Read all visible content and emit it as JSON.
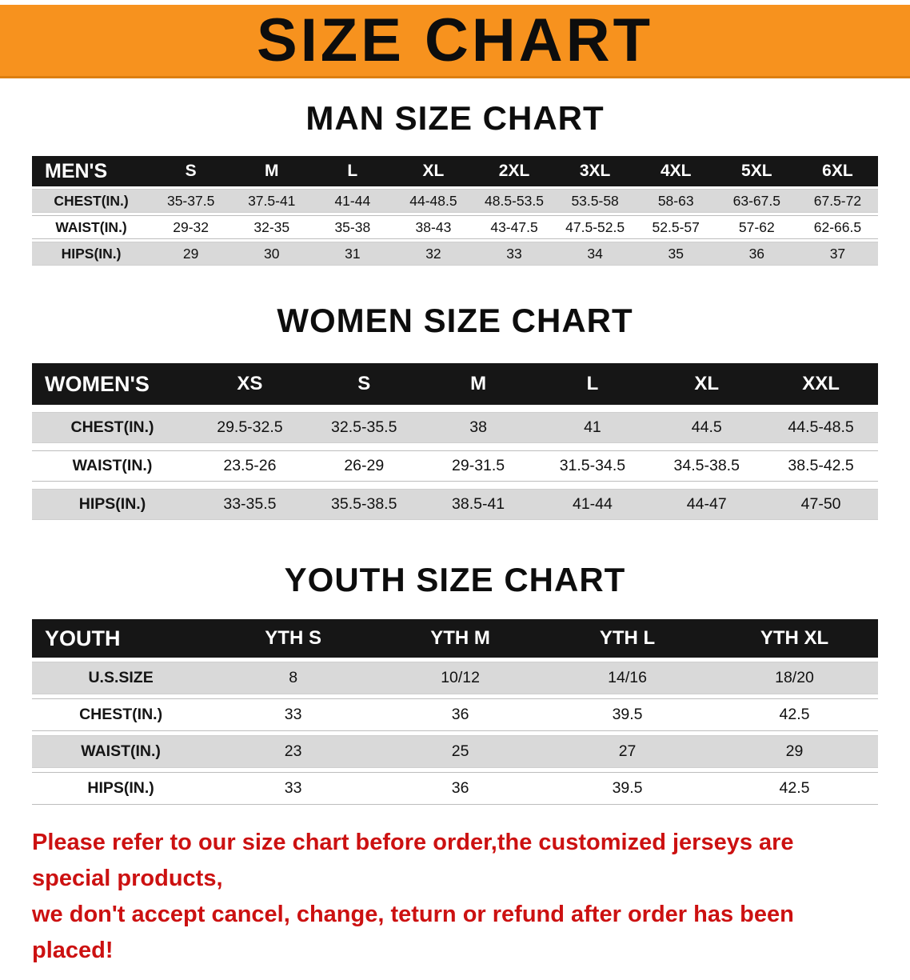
{
  "banner": {
    "title": "SIZE CHART"
  },
  "colors": {
    "banner_orange": "#F7921E",
    "table_header_black": "#161616",
    "row_stripe_gray": "#D9D9D9",
    "disclaimer_red": "#CC1111",
    "title_black": "#0D0D0D"
  },
  "chart_data": [
    {
      "type": "table",
      "title": "MAN SIZE CHART",
      "columns": [
        "MEN'S",
        "S",
        "M",
        "L",
        "XL",
        "2XL",
        "3XL",
        "4XL",
        "5XL",
        "6XL"
      ],
      "rows": [
        [
          "CHEST(IN.)",
          "35-37.5",
          "37.5-41",
          "41-44",
          "44-48.5",
          "48.5-53.5",
          "53.5-58",
          "58-63",
          "63-67.5",
          "67.5-72"
        ],
        [
          "WAIST(IN.)",
          "29-32",
          "32-35",
          "35-38",
          "38-43",
          "43-47.5",
          "47.5-52.5",
          "52.5-57",
          "57-62",
          "62-66.5"
        ],
        [
          "HIPS(IN.)",
          "29",
          "30",
          "31",
          "32",
          "33",
          "34",
          "35",
          "36",
          "37"
        ]
      ],
      "label_col_width": "14%",
      "stripe_pattern": "odd-rows-gray",
      "header_style": "black-bar-white-text"
    },
    {
      "type": "table",
      "title": "WOMEN SIZE CHART",
      "columns": [
        "WOMEN'S",
        "XS",
        "S",
        "M",
        "L",
        "XL",
        "XXL"
      ],
      "rows": [
        [
          "CHEST(IN.)",
          "29.5-32.5",
          "32.5-35.5",
          "38",
          "41",
          "44.5",
          "44.5-48.5"
        ],
        [
          "WAIST(IN.)",
          "23.5-26",
          "26-29",
          "29-31.5",
          "31.5-34.5",
          "34.5-38.5",
          "38.5-42.5"
        ],
        [
          "HIPS(IN.)",
          "33-35.5",
          "35.5-38.5",
          "38.5-41",
          "41-44",
          "44-47",
          "47-50"
        ]
      ],
      "label_col_width": "19%",
      "stripe_pattern": "odd-rows-gray",
      "header_style": "black-bar-white-text"
    },
    {
      "type": "table",
      "title": "YOUTH SIZE CHART",
      "columns": [
        "YOUTH",
        "YTH S",
        "YTH M",
        "YTH L",
        "YTH XL"
      ],
      "rows": [
        [
          "U.S.SIZE",
          "8",
          "10/12",
          "14/16",
          "18/20"
        ],
        [
          "CHEST(IN.)",
          "33",
          "36",
          "39.5",
          "42.5"
        ],
        [
          "WAIST(IN.)",
          "23",
          "25",
          "27",
          "29"
        ],
        [
          "HIPS(IN.)",
          "33",
          "36",
          "39.5",
          "42.5"
        ]
      ],
      "label_col_width": "21%",
      "stripe_pattern": "odd-rows-gray",
      "header_style": "black-bar-white-text"
    }
  ],
  "disclaimer": {
    "lines": [
      "Please refer to our size chart before order,the customized jerseys are special products,",
      "we don't accept cancel, change, teturn or refund after order has been placed!"
    ]
  }
}
